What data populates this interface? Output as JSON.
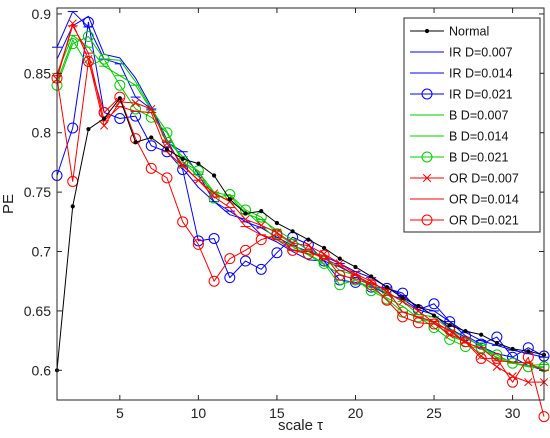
{
  "chart_data": {
    "type": "line",
    "title": "",
    "xlabel": "scale τ",
    "ylabel": "PE",
    "xlim": [
      1,
      32
    ],
    "ylim": [
      0.575,
      0.905
    ],
    "xticks": [
      5,
      10,
      15,
      20,
      25,
      30
    ],
    "yticks": [
      0.6,
      0.65,
      0.7,
      0.75,
      0.8,
      0.85,
      0.9
    ],
    "grid": false,
    "legend_position": "top-right",
    "x": [
      1,
      2,
      3,
      4,
      5,
      6,
      7,
      8,
      9,
      10,
      11,
      12,
      13,
      14,
      15,
      16,
      17,
      18,
      19,
      20,
      21,
      22,
      23,
      24,
      25,
      26,
      27,
      28,
      29,
      30,
      31,
      32
    ],
    "series": [
      {
        "name": "Normal",
        "color": "#000000",
        "marker": "dot",
        "values": [
          0.6,
          0.738,
          0.803,
          0.812,
          0.829,
          0.792,
          0.796,
          0.786,
          0.778,
          0.774,
          0.764,
          0.744,
          0.732,
          0.734,
          0.724,
          0.717,
          0.71,
          0.703,
          0.694,
          0.687,
          0.679,
          0.67,
          0.661,
          0.654,
          0.646,
          0.638,
          0.633,
          0.63,
          0.623,
          0.618,
          0.616,
          0.613
        ]
      },
      {
        "name": "IR D=0.007",
        "color": "#0000ff",
        "marker": "none",
        "values": [
          0.862,
          0.89,
          0.898,
          0.866,
          0.863,
          0.846,
          0.822,
          0.794,
          0.77,
          0.754,
          0.742,
          0.731,
          0.727,
          0.714,
          0.708,
          0.7,
          0.693,
          0.692,
          0.687,
          0.68,
          0.671,
          0.664,
          0.66,
          0.651,
          0.647,
          0.635,
          0.628,
          0.62,
          0.614,
          0.611,
          0.604,
          0.6
        ]
      },
      {
        "name": "IR D=0.014",
        "color": "#0000ff",
        "marker": "dash",
        "values": [
          0.872,
          0.902,
          0.889,
          0.862,
          0.858,
          0.83,
          0.82,
          0.792,
          0.784,
          0.765,
          0.742,
          0.734,
          0.725,
          0.72,
          0.712,
          0.705,
          0.7,
          0.696,
          0.69,
          0.683,
          0.678,
          0.67,
          0.663,
          0.653,
          0.65,
          0.641,
          0.632,
          0.625,
          0.621,
          0.617,
          0.614,
          0.611
        ]
      },
      {
        "name": "IR D=0.021",
        "color": "#0000ff",
        "marker": "circle",
        "values": [
          0.764,
          0.804,
          0.893,
          0.817,
          0.812,
          0.814,
          0.789,
          0.784,
          0.769,
          0.709,
          0.711,
          0.678,
          0.692,
          0.685,
          0.699,
          0.712,
          0.706,
          0.692,
          0.676,
          0.674,
          0.67,
          0.669,
          0.665,
          0.651,
          0.656,
          0.641,
          0.629,
          0.622,
          0.628,
          0.611,
          0.619,
          0.612
        ]
      },
      {
        "name": "B D=0.007",
        "color": "#00cc00",
        "marker": "none",
        "values": [
          0.843,
          0.878,
          0.856,
          0.862,
          0.861,
          0.843,
          0.82,
          0.801,
          0.776,
          0.763,
          0.75,
          0.742,
          0.734,
          0.722,
          0.71,
          0.704,
          0.697,
          0.689,
          0.681,
          0.676,
          0.669,
          0.661,
          0.654,
          0.644,
          0.64,
          0.629,
          0.624,
          0.618,
          0.611,
          0.607,
          0.603,
          0.602
        ]
      },
      {
        "name": "B D=0.014",
        "color": "#00cc00",
        "marker": "dash",
        "values": [
          0.85,
          0.882,
          0.872,
          0.856,
          0.848,
          0.84,
          0.819,
          0.793,
          0.78,
          0.767,
          0.75,
          0.747,
          0.732,
          0.727,
          0.718,
          0.71,
          0.701,
          0.696,
          0.684,
          0.68,
          0.672,
          0.665,
          0.658,
          0.647,
          0.645,
          0.634,
          0.627,
          0.621,
          0.61,
          0.606,
          0.604,
          0.605
        ]
      },
      {
        "name": "B D=0.021",
        "color": "#00cc00",
        "marker": "circle",
        "values": [
          0.84,
          0.875,
          0.881,
          0.862,
          0.84,
          0.82,
          0.813,
          0.8,
          0.775,
          0.768,
          0.745,
          0.748,
          0.735,
          0.729,
          0.715,
          0.706,
          0.698,
          0.69,
          0.672,
          0.676,
          0.667,
          0.66,
          0.649,
          0.645,
          0.636,
          0.626,
          0.62,
          0.619,
          0.613,
          0.606,
          0.603,
          0.603
        ]
      },
      {
        "name": "OR D=0.007",
        "color": "#ff0000",
        "marker": "cross",
        "values": [
          0.845,
          0.892,
          0.862,
          0.806,
          0.826,
          0.825,
          0.82,
          0.791,
          0.773,
          0.76,
          0.749,
          0.742,
          0.727,
          0.722,
          0.716,
          0.707,
          0.705,
          0.698,
          0.69,
          0.681,
          0.675,
          0.666,
          0.658,
          0.65,
          0.64,
          0.63,
          0.625,
          0.612,
          0.603,
          0.595,
          0.59,
          0.59
        ]
      },
      {
        "name": "OR D=0.014",
        "color": "#ff0000",
        "marker": "dash",
        "values": [
          0.848,
          0.89,
          0.867,
          0.81,
          0.822,
          0.818,
          0.817,
          0.784,
          0.772,
          0.76,
          0.746,
          0.737,
          0.721,
          0.714,
          0.71,
          0.701,
          0.7,
          0.694,
          0.688,
          0.68,
          0.673,
          0.668,
          0.649,
          0.645,
          0.641,
          0.633,
          0.623,
          0.619,
          0.608,
          0.607,
          0.606,
          0.6
        ]
      },
      {
        "name": "OR D=0.021",
        "color": "#ff0000",
        "marker": "circle",
        "values": [
          0.846,
          0.759,
          0.86,
          0.817,
          0.83,
          0.795,
          0.77,
          0.762,
          0.725,
          0.706,
          0.675,
          0.694,
          0.701,
          0.71,
          0.714,
          0.701,
          0.698,
          0.697,
          0.68,
          0.677,
          0.672,
          0.659,
          0.645,
          0.64,
          0.639,
          0.634,
          0.624,
          0.61,
          0.61,
          0.59,
          0.611,
          0.561
        ]
      }
    ]
  }
}
